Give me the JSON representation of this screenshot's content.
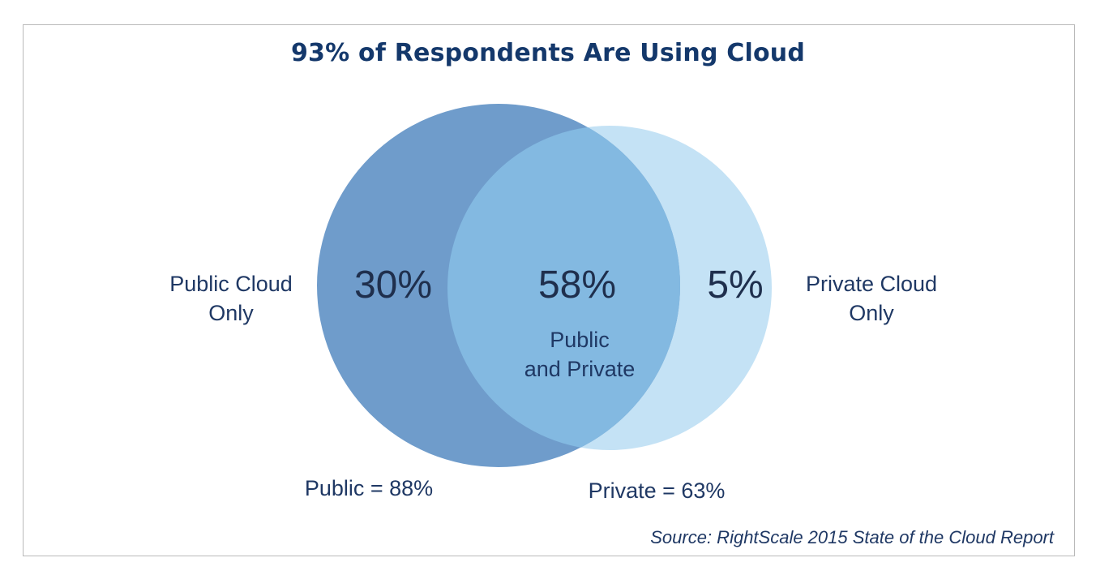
{
  "chart_data": {
    "type": "venn",
    "title": "93% of Respondents Are Using Cloud",
    "sets": [
      {
        "name": "Public",
        "total_label": "Public = 88%",
        "total": 88,
        "color": "#6f9ccb"
      },
      {
        "name": "Private",
        "total_label": "Private = 63%",
        "total": 63,
        "color": "#c4e2f5"
      }
    ],
    "regions": [
      {
        "key": "public_only",
        "value_label": "30%",
        "value": 30,
        "label_line1": "Public Cloud",
        "label_line2": "Only"
      },
      {
        "key": "both",
        "value_label": "58%",
        "value": 58,
        "label_line1": "Public",
        "label_line2": "and Private",
        "color": "#83b9e1"
      },
      {
        "key": "private_only",
        "value_label": "5%",
        "value": 5,
        "label_line1": "Private Cloud",
        "label_line2": "Only"
      }
    ],
    "source": "Source: RightScale 2015 State of the Cloud Report"
  }
}
